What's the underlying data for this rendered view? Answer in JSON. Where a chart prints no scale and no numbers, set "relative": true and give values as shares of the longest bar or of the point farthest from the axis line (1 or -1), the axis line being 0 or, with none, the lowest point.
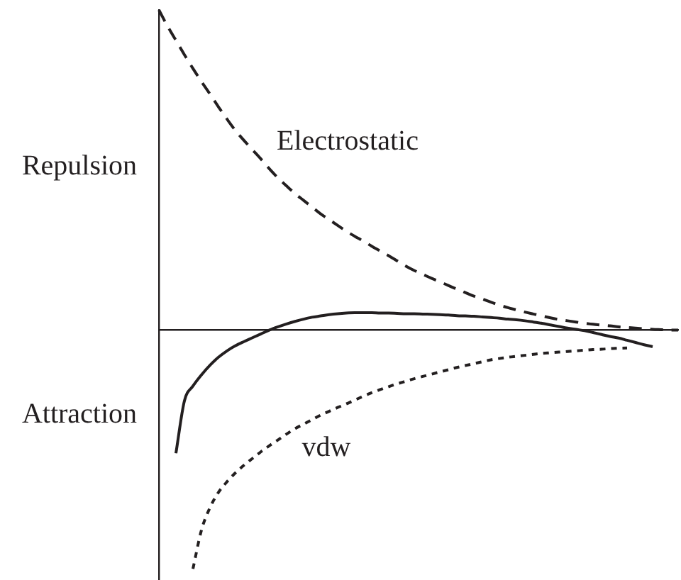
{
  "chart_data": {
    "type": "line",
    "relative": true,
    "marker": "none",
    "categories": [
      null,
      null,
      null,
      null,
      null,
      null,
      null,
      null,
      null,
      null,
      null,
      null,
      null,
      null,
      null,
      null,
      null,
      null,
      null,
      null,
      null,
      null,
      null,
      null,
      null,
      null,
      null,
      null,
      null,
      null,
      null,
      null,
      null,
      null,
      null,
      null,
      null,
      null,
      null,
      null,
      null,
      null,
      null,
      null,
      null,
      null,
      null,
      null,
      null,
      null,
      null,
      null,
      null,
      null,
      null,
      null,
      null,
      null,
      null,
      null,
      null,
      null
    ],
    "series": [
      {
        "name": "Electrostatic",
        "color": "#231f20",
        "line_style": "dashed",
        "values": [
          1.0,
          0.95,
          0.905,
          0.86,
          0.817,
          0.776,
          0.737,
          0.697,
          0.659,
          0.623,
          0.592,
          0.563,
          0.534,
          0.503,
          0.475,
          0.45,
          0.426,
          0.405,
          0.384,
          0.363,
          0.345,
          0.327,
          0.309,
          0.293,
          0.278,
          0.262,
          0.247,
          0.232,
          0.216,
          0.2,
          0.186,
          0.174,
          0.162,
          0.151,
          0.139,
          0.128,
          0.117,
          0.106,
          0.097,
          0.087,
          0.078,
          0.07,
          0.063,
          0.056,
          0.05,
          0.044,
          0.038,
          0.033,
          0.029,
          0.025,
          0.021,
          0.018,
          0.015,
          0.013,
          0.01,
          0.008,
          0.006,
          0.004,
          0.002,
          0.001,
          0,
          0
        ]
      },
      {
        "color": "#231f20",
        "line_style": "solid",
        "values": [
          null,
          null,
          -0.385,
          -0.221,
          -0.175,
          -0.14,
          -0.11,
          -0.085,
          -0.065,
          -0.049,
          -0.036,
          -0.024,
          -0.012,
          0,
          0.01,
          0.019,
          0.027,
          0.034,
          0.04,
          0.044,
          0.048,
          0.051,
          0.053,
          0.054,
          0.054,
          0.054,
          0.053,
          0.053,
          0.052,
          0.051,
          0.051,
          0.05,
          0.049,
          0.048,
          0.047,
          0.045,
          0.044,
          0.043,
          0.041,
          0.039,
          0.037,
          0.034,
          0.032,
          0.029,
          0.025,
          0.021,
          0.016,
          0.011,
          0.006,
          0.002,
          -0.002,
          -0.008,
          -0.014,
          -0.02,
          -0.025,
          -0.032,
          -0.039,
          -0.046,
          -0.052,
          null,
          null,
          null
        ]
      },
      {
        "name": "vdw",
        "color": "#231f20",
        "line_style": "dotted",
        "values": [
          null,
          null,
          null,
          null,
          -0.746,
          -0.625,
          -0.555,
          -0.507,
          -0.474,
          -0.446,
          -0.422,
          -0.401,
          -0.38,
          -0.361,
          -0.343,
          -0.325,
          -0.308,
          -0.294,
          -0.28,
          -0.266,
          -0.254,
          -0.242,
          -0.231,
          -0.219,
          -0.207,
          -0.196,
          -0.186,
          -0.177,
          -0.168,
          -0.16,
          -0.152,
          -0.145,
          -0.138,
          -0.131,
          -0.124,
          -0.117,
          -0.111,
          -0.105,
          -0.099,
          -0.093,
          -0.089,
          -0.085,
          -0.082,
          -0.079,
          -0.076,
          -0.073,
          -0.071,
          -0.069,
          -0.067,
          -0.065,
          -0.063,
          -0.061,
          -0.06,
          -0.058,
          -0.057,
          -0.056,
          null,
          null,
          null,
          null,
          null,
          null
        ]
      }
    ],
    "annotations": [
      "Repulsion",
      "Attraction"
    ]
  }
}
